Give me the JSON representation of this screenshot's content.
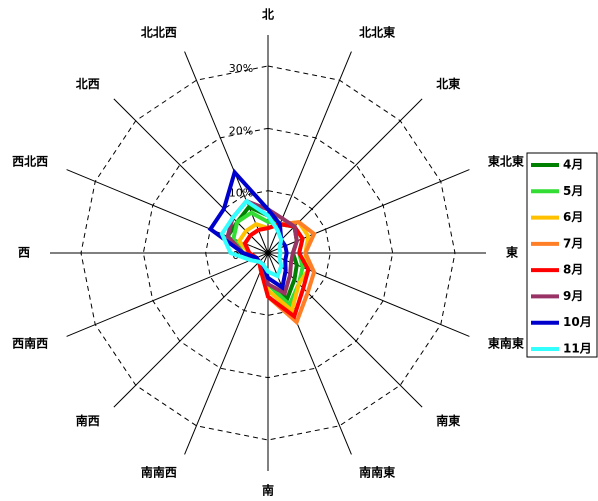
{
  "chart_data": {
    "type": "radar",
    "categories": [
      "北",
      "北北東",
      "北東",
      "東北東",
      "東",
      "東南東",
      "南東",
      "南南東",
      "南",
      "南南西",
      "南西",
      "西南西",
      "西",
      "西北西",
      "北西",
      "北北西"
    ],
    "rlim": [
      0,
      30
    ],
    "rticks": [
      {
        "value": 0,
        "label": "0%"
      },
      {
        "value": 10,
        "label": "10%"
      },
      {
        "value": 20,
        "label": "20%"
      },
      {
        "value": 30,
        "label": "30%"
      }
    ],
    "grid": true,
    "legend": "right",
    "series": [
      {
        "name": "4月",
        "color": "#008000",
        "values": [
          6,
          5,
          6,
          5,
          4,
          5,
          6,
          8,
          5,
          2,
          2,
          2,
          4,
          7,
          7,
          8
        ]
      },
      {
        "name": "5月",
        "color": "#33dd33",
        "values": [
          5,
          5,
          6,
          6,
          5,
          6,
          7,
          9,
          5,
          2,
          2,
          2,
          4,
          6,
          7,
          7
        ]
      },
      {
        "name": "6月",
        "color": "#ffc000",
        "values": [
          4,
          5,
          7,
          7,
          6,
          7,
          7,
          10,
          6,
          2,
          2,
          2,
          3,
          5,
          5,
          5
        ]
      },
      {
        "name": "7月",
        "color": "#ff7f27",
        "values": [
          4,
          5,
          7,
          8,
          6,
          8,
          9,
          12,
          7,
          3,
          2,
          2,
          3,
          4,
          4,
          4
        ]
      },
      {
        "name": "8月",
        "color": "#ff0000",
        "values": [
          4,
          5,
          6,
          6,
          5,
          7,
          8,
          11,
          7,
          3,
          2,
          2,
          3,
          4,
          4,
          4
        ]
      },
      {
        "name": "9月",
        "color": "#993366",
        "values": [
          7,
          6,
          6,
          5,
          4,
          4,
          5,
          7,
          5,
          2,
          2,
          2,
          4,
          7,
          8,
          9
        ]
      },
      {
        "name": "10月",
        "color": "#0000cc",
        "values": [
          7,
          5,
          3,
          3,
          3,
          3,
          4,
          6,
          4,
          2,
          2,
          2,
          4,
          10,
          10,
          14
        ]
      },
      {
        "name": "11月",
        "color": "#33ffff",
        "values": [
          6,
          4,
          3,
          2,
          2,
          2,
          3,
          4,
          3,
          2,
          2,
          3,
          6,
          8,
          8,
          9
        ]
      }
    ]
  }
}
